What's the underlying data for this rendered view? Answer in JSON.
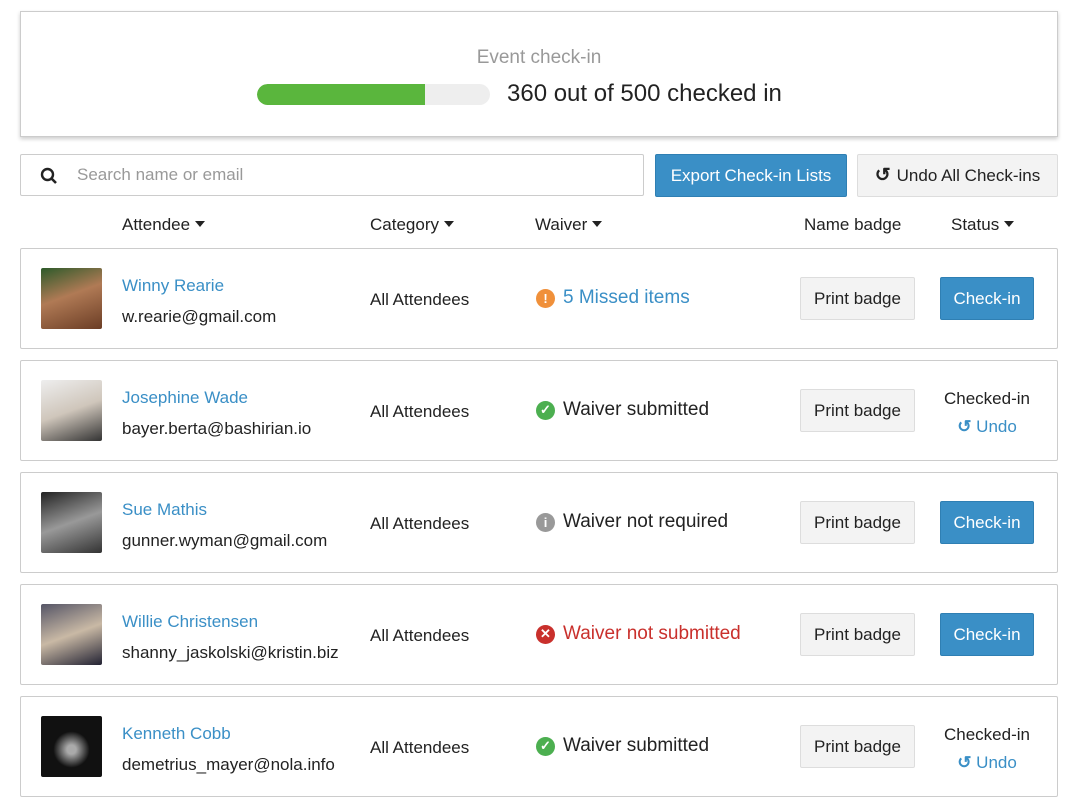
{
  "header": {
    "title": "Event check-in",
    "checked_in": 360,
    "total": 500,
    "progress_fraction": 0.72,
    "count_label": "360 out of 500 checked in"
  },
  "toolbar": {
    "search_placeholder": "Search name or email",
    "search_value": "",
    "export_label": "Export Check-in Lists",
    "undo_all_label": "Undo All Check-ins"
  },
  "columns": {
    "attendee": "Attendee",
    "category": "Category",
    "waiver": "Waiver",
    "badge": "Name badge",
    "status": "Status"
  },
  "colors": {
    "accent": "#3a8fc6",
    "progress": "#5ab63d",
    "warning": "#f0903a",
    "success": "#4caf50",
    "error": "#c9302c",
    "neutral": "#999999"
  },
  "rows": [
    {
      "name": "Winny Rearie",
      "email": "w.rearie@gmail.com",
      "category": "All Attendees",
      "waiver": "5 Missed items",
      "waiver_state": "missed",
      "badge_label": "Print badge",
      "status": "Check-in",
      "checked": false
    },
    {
      "name": "Josephine Wade",
      "email": "bayer.berta@bashirian.io",
      "category": "All Attendees",
      "waiver": "Waiver submitted",
      "waiver_state": "submitted",
      "badge_label": "Print badge",
      "status": "Checked-in",
      "undo": "Undo",
      "checked": true
    },
    {
      "name": "Sue Mathis",
      "email": "gunner.wyman@gmail.com",
      "category": "All Attendees",
      "waiver": "Waiver not required",
      "waiver_state": "not-required",
      "badge_label": "Print badge",
      "status": "Check-in",
      "checked": false
    },
    {
      "name": "Willie Christensen",
      "email": "shanny_jaskolski@kristin.biz",
      "category": "All Attendees",
      "waiver": "Waiver not submitted",
      "waiver_state": "not-submitted",
      "badge_label": "Print badge",
      "status": "Check-in",
      "checked": false
    },
    {
      "name": "Kenneth Cobb",
      "email": "demetrius_mayer@nola.info",
      "category": "All Attendees",
      "waiver": "Waiver submitted",
      "waiver_state": "submitted",
      "badge_label": "Print badge",
      "status": "Checked-in",
      "undo": "Undo",
      "checked": true
    }
  ]
}
